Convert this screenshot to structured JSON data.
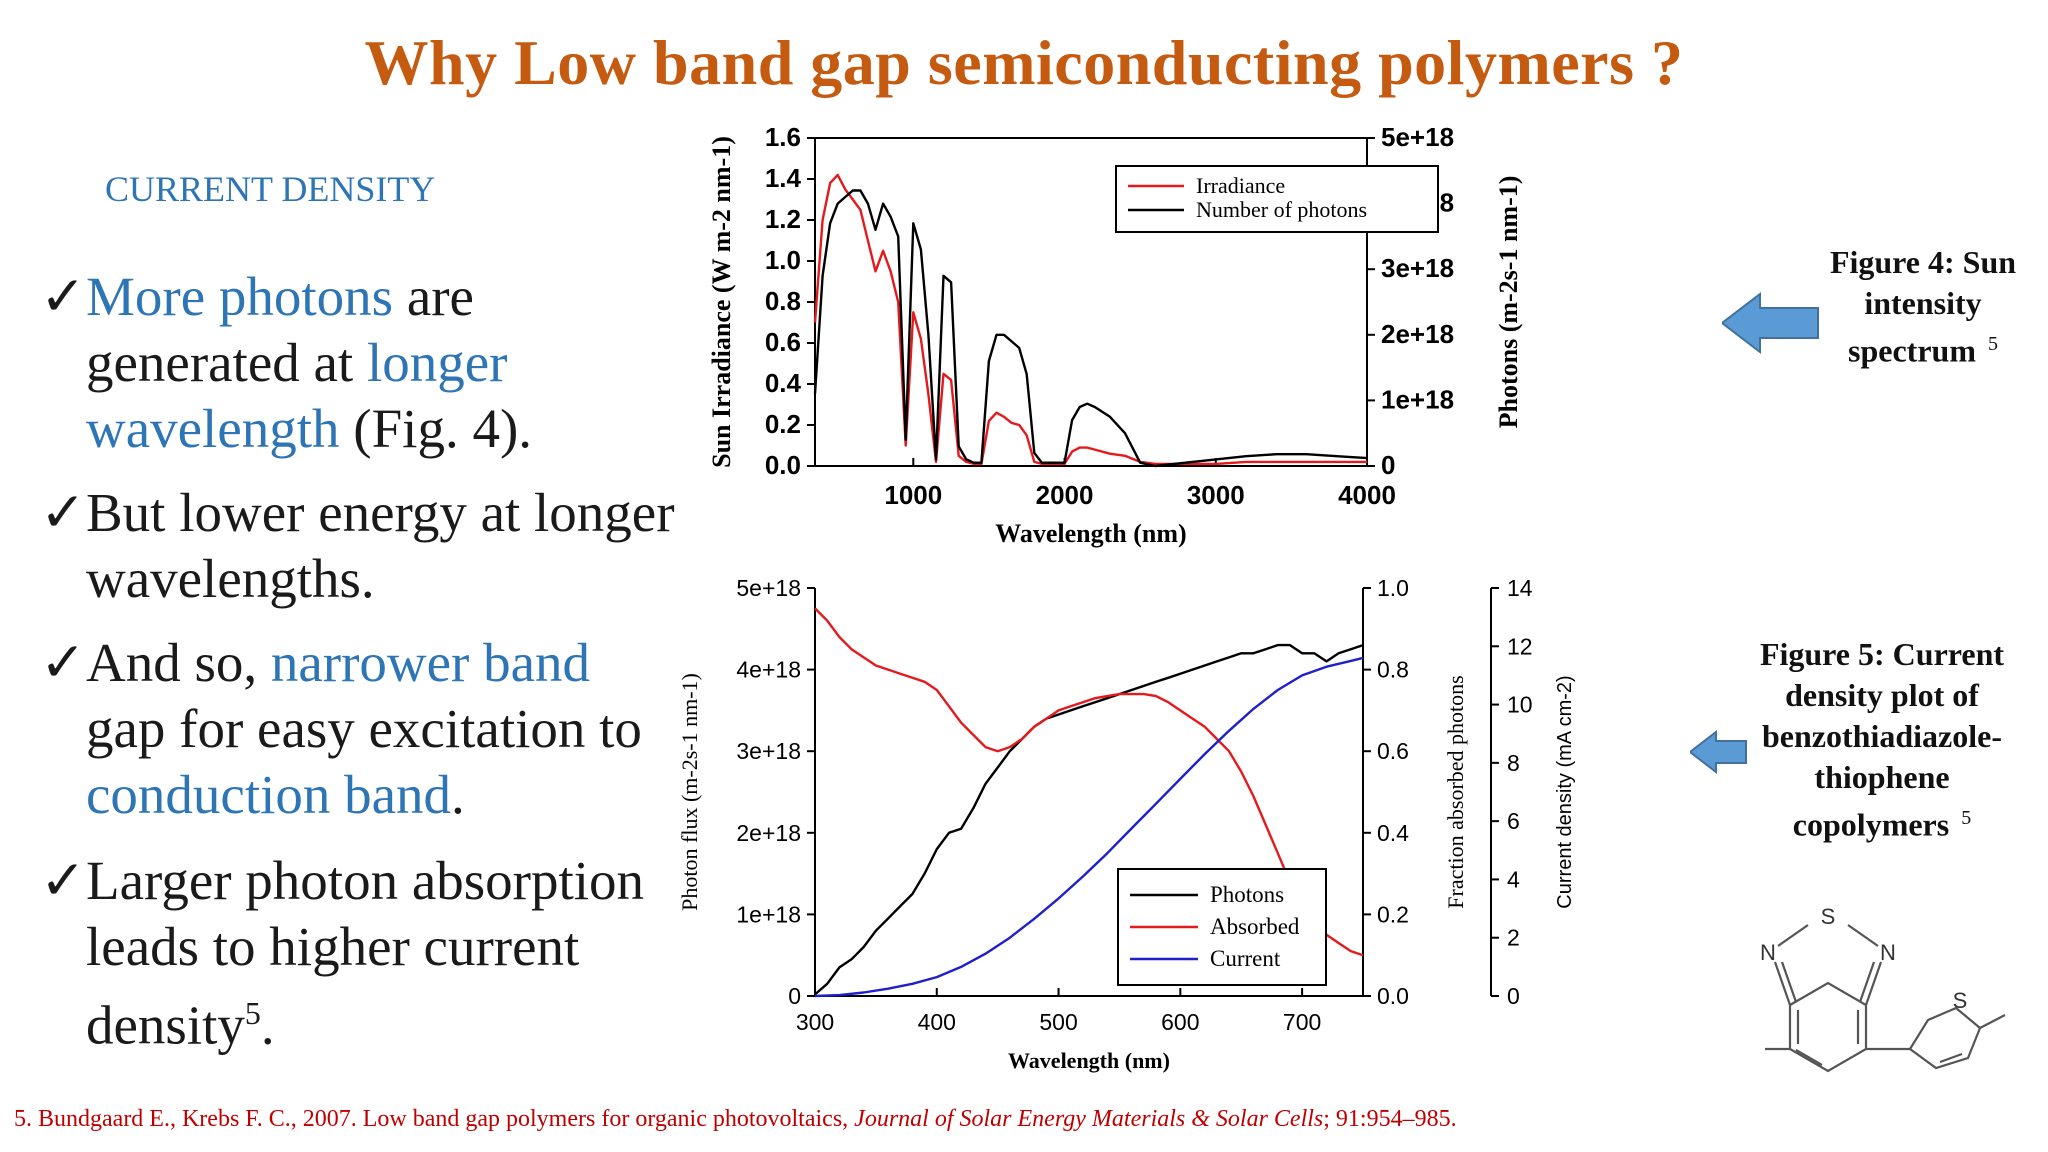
{
  "title": "Why Low band gap semiconducting polymers ?",
  "section_heading": "CURRENT DENSITY",
  "bullets": [
    {
      "check": "✓",
      "p1": "More photons",
      "p2": " are generated at ",
      "p3": "longer wavelength",
      "p4": " (Fig. 4)."
    },
    {
      "check": "✓",
      "text": "But lower energy at longer wavelengths."
    },
    {
      "check": "✓",
      "p1": "And so, ",
      "p2": "narrower band",
      "p3": " gap for easy excitation to ",
      "p4": "conduction band",
      "p5": "."
    },
    {
      "check": "✓",
      "text": "Larger photon absorption leads to higher current density",
      "sup": "5",
      "end": "."
    }
  ],
  "figure4_caption": {
    "l1": "Figure 4: Sun",
    "l2": "intensity",
    "l3": "spectrum",
    "ref": "5"
  },
  "figure5_caption": {
    "l1": "Figure 5: Current",
    "l2": "density plot of",
    "l3": "benzothiadiazole-",
    "l4": "thiophene",
    "l5": "copolymers",
    "ref": "5"
  },
  "reference": {
    "pre": "5. Bundgaard E., Krebs F. C., 2007. Low band gap polymers for organic photovoltaics, ",
    "journal": "Journal of Solar Energy Materials & Solar Cells",
    "post": "; 91:954–985."
  },
  "molecule_labels": {
    "s1": "S",
    "n1": "N",
    "n2": "N",
    "s2": "S"
  },
  "colors": {
    "title": "#C55A11",
    "accent": "#2E75B6",
    "reference": "#C00000",
    "arrow": "#5B9BD5"
  },
  "chart_data": [
    {
      "type": "line",
      "xlabel": "Wavelength (nm)",
      "ylabel": "Sun Irradiance (W m-2 nm-1)",
      "y2label": "Photons (m-2s-1 nm-1)",
      "xlim": [
        350,
        4000
      ],
      "ylim": [
        0,
        1.6
      ],
      "y2lim": [
        0,
        5e+18
      ],
      "xticks": [
        "1000",
        "2000",
        "3000",
        "4000"
      ],
      "yticks": [
        "0.0",
        "0.2",
        "0.4",
        "0.6",
        "0.8",
        "1.0",
        "1.2",
        "1.4",
        "1.6"
      ],
      "y2ticks": [
        "0",
        "1e+18",
        "2e+18",
        "3e+18",
        "4e+18",
        "5e+18"
      ],
      "legend": [
        "Irradiance",
        "Number of photons"
      ],
      "legend_position": "top-right",
      "series": [
        {
          "name": "Irradiance",
          "color": "#E41A1C",
          "x": [
            350,
            400,
            450,
            500,
            550,
            600,
            650,
            700,
            750,
            800,
            850,
            900,
            950,
            1000,
            1050,
            1100,
            1150,
            1200,
            1250,
            1300,
            1350,
            1400,
            1450,
            1500,
            1550,
            1600,
            1650,
            1700,
            1750,
            1800,
            1850,
            1900,
            1950,
            2000,
            2050,
            2100,
            2150,
            2200,
            2300,
            2400,
            2500,
            2600,
            2800,
            3000,
            3200,
            3400,
            3600,
            3800,
            4000
          ],
          "y": [
            0.7,
            1.2,
            1.38,
            1.42,
            1.35,
            1.3,
            1.25,
            1.1,
            0.95,
            1.05,
            0.95,
            0.8,
            0.1,
            0.75,
            0.62,
            0.35,
            0.02,
            0.45,
            0.42,
            0.05,
            0.02,
            0.01,
            0.01,
            0.22,
            0.26,
            0.24,
            0.21,
            0.2,
            0.15,
            0.02,
            0.01,
            0.01,
            0.01,
            0.01,
            0.07,
            0.09,
            0.09,
            0.08,
            0.06,
            0.05,
            0.02,
            0.01,
            0.01,
            0.01,
            0.02,
            0.02,
            0.02,
            0.02,
            0.02
          ]
        },
        {
          "name": "Number of photons",
          "color": "#000000",
          "x": [
            350,
            400,
            450,
            500,
            550,
            600,
            650,
            700,
            750,
            800,
            850,
            900,
            950,
            1000,
            1050,
            1100,
            1150,
            1200,
            1250,
            1300,
            1350,
            1400,
            1450,
            1500,
            1550,
            1600,
            1650,
            1700,
            1750,
            1800,
            1850,
            1900,
            1950,
            2000,
            2050,
            2100,
            2150,
            2200,
            2300,
            2400,
            2500,
            2600,
            2800,
            3000,
            3200,
            3400,
            3600,
            3800,
            4000
          ],
          "y": [
            1.1e+18,
            2.9e+18,
            3.7e+18,
            4e+18,
            4.1e+18,
            4.2e+18,
            4.2e+18,
            4e+18,
            3.6e+18,
            4e+18,
            3.8e+18,
            3.5e+18,
            4e+17,
            3.7e+18,
            3.3e+18,
            2e+18,
            1e+17,
            2.9e+18,
            2.8e+18,
            3e+17,
            1e+17,
            5e+16,
            5e+16,
            1.6e+18,
            2e+18,
            2e+18,
            1.9e+18,
            1.8e+18,
            1.4e+18,
            2e+17,
            5e+16,
            5e+16,
            5e+16,
            5e+16,
            7e+17,
            9e+17,
            9.5e+17,
            9e+17,
            7.5e+17,
            5e+17,
            5e+16,
            0.0,
            5e+16,
            1e+17,
            1.5e+17,
            1.8e+17,
            1.8e+17,
            1.5e+17,
            1.2e+17
          ]
        }
      ]
    },
    {
      "type": "line",
      "xlabel": "Wavelength (nm)",
      "ylabel": "Photon flux (m-2s-1 nm-1)",
      "y2label": "Fraction absorbed photons",
      "y3label": "Current density (mA cm-2)",
      "xlim": [
        300,
        750
      ],
      "ylim": [
        0,
        5e+18
      ],
      "y2lim": [
        0,
        1.0
      ],
      "y3lim": [
        0,
        14
      ],
      "xticks": [
        "300",
        "400",
        "500",
        "600",
        "700"
      ],
      "yticks": [
        "0",
        "1e+18",
        "2e+18",
        "3e+18",
        "4e+18",
        "5e+18"
      ],
      "y2ticks": [
        "0.0",
        "0.2",
        "0.4",
        "0.6",
        "0.8",
        "1.0"
      ],
      "y3ticks": [
        "0",
        "2",
        "4",
        "6",
        "8",
        "10",
        "12",
        "14"
      ],
      "legend": [
        "Photons",
        "Absorbed",
        "Current"
      ],
      "legend_position": "bottom-right",
      "series": [
        {
          "name": "Photons",
          "color": "#000000",
          "x": [
            300,
            310,
            320,
            330,
            340,
            350,
            360,
            370,
            380,
            390,
            400,
            410,
            420,
            430,
            440,
            450,
            460,
            470,
            480,
            490,
            500,
            510,
            520,
            530,
            540,
            550,
            560,
            570,
            580,
            590,
            600,
            610,
            620,
            630,
            640,
            650,
            660,
            670,
            680,
            690,
            700,
            710,
            720,
            730,
            740,
            750
          ],
          "y": [
            2e+16,
            1.5e+17,
            3.5e+17,
            4.5e+17,
            6e+17,
            8e+17,
            9.5e+17,
            1.1e+18,
            1.25e+18,
            1.5e+18,
            1.8e+18,
            2e+18,
            2.05e+18,
            2.3e+18,
            2.6e+18,
            2.8e+18,
            3e+18,
            3.15e+18,
            3.3e+18,
            3.4e+18,
            3.45e+18,
            3.5e+18,
            3.55e+18,
            3.6e+18,
            3.65e+18,
            3.7e+18,
            3.75e+18,
            3.8e+18,
            3.85e+18,
            3.9e+18,
            3.95e+18,
            4e+18,
            4.05e+18,
            4.1e+18,
            4.15e+18,
            4.2e+18,
            4.2e+18,
            4.25e+18,
            4.3e+18,
            4.3e+18,
            4.2e+18,
            4.2e+18,
            4.1e+18,
            4.2e+18,
            4.25e+18,
            4.3e+18
          ]
        },
        {
          "name": "Absorbed",
          "color": "#E41A1C",
          "x": [
            300,
            310,
            320,
            330,
            340,
            350,
            360,
            370,
            380,
            390,
            400,
            410,
            420,
            430,
            440,
            450,
            460,
            470,
            480,
            490,
            500,
            510,
            520,
            530,
            540,
            550,
            560,
            570,
            580,
            590,
            600,
            610,
            620,
            630,
            640,
            650,
            660,
            670,
            680,
            690,
            700,
            710,
            720,
            730,
            740,
            750
          ],
          "y": [
            0.95,
            0.92,
            0.88,
            0.85,
            0.83,
            0.81,
            0.8,
            0.79,
            0.78,
            0.77,
            0.75,
            0.71,
            0.67,
            0.64,
            0.61,
            0.6,
            0.61,
            0.63,
            0.66,
            0.68,
            0.7,
            0.71,
            0.72,
            0.73,
            0.735,
            0.74,
            0.74,
            0.74,
            0.735,
            0.72,
            0.7,
            0.68,
            0.66,
            0.63,
            0.6,
            0.55,
            0.49,
            0.42,
            0.35,
            0.28,
            0.22,
            0.18,
            0.15,
            0.13,
            0.11,
            0.1
          ]
        },
        {
          "name": "Current",
          "color": "#1F1FCC",
          "x": [
            300,
            320,
            340,
            360,
            380,
            400,
            420,
            440,
            460,
            480,
            500,
            520,
            540,
            560,
            580,
            600,
            620,
            640,
            660,
            680,
            700,
            720,
            740,
            750
          ],
          "y": [
            0,
            0.03,
            0.12,
            0.25,
            0.42,
            0.65,
            1.0,
            1.45,
            2.0,
            2.65,
            3.35,
            4.1,
            4.9,
            5.75,
            6.6,
            7.45,
            8.3,
            9.1,
            9.85,
            10.5,
            11.0,
            11.3,
            11.5,
            11.6
          ]
        }
      ]
    }
  ]
}
